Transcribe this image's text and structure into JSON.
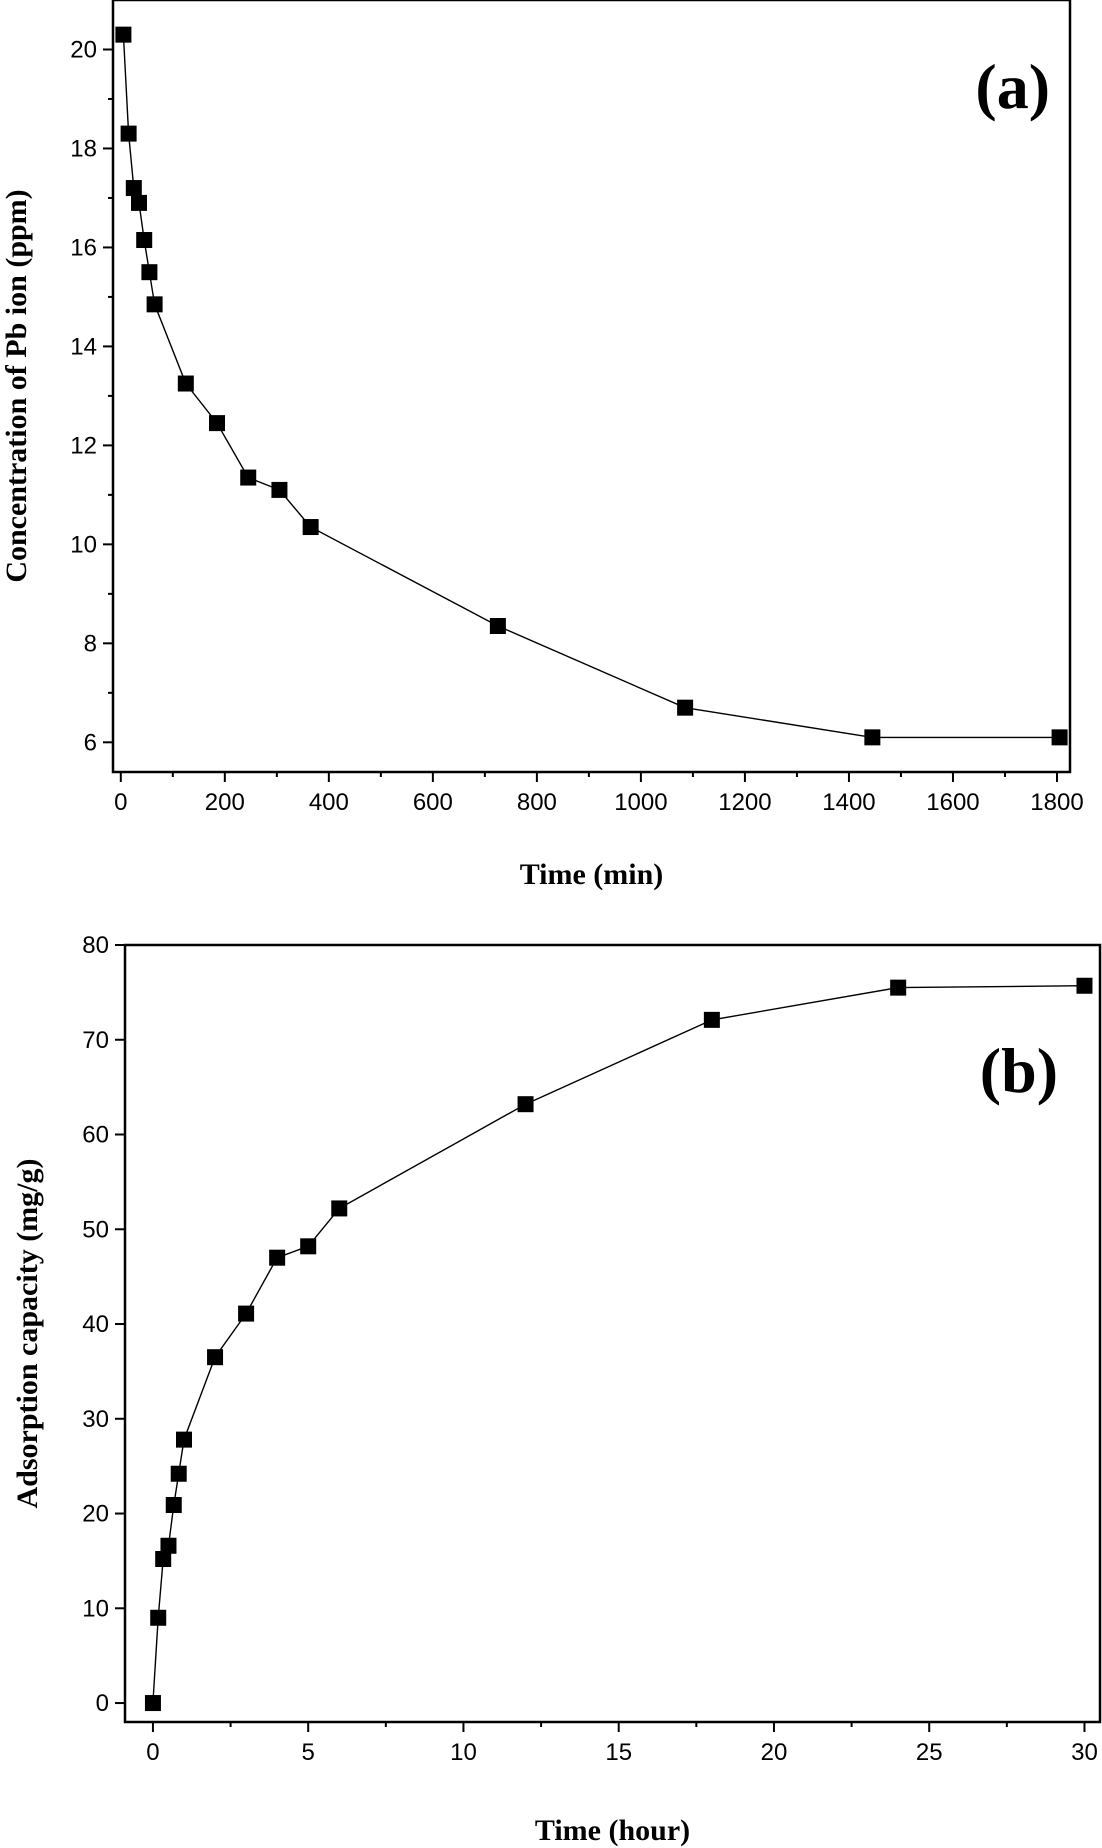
{
  "chart_data": [
    {
      "type": "line",
      "panel_label": "(a)",
      "xlabel": "Time (min)",
      "ylabel": "Concentration of Pb ion (ppm)",
      "xlim": [
        -15,
        1825
      ],
      "ylim": [
        5.4,
        21.0
      ],
      "xticks": [
        0,
        200,
        400,
        600,
        800,
        1000,
        1200,
        1400,
        1600,
        1800
      ],
      "yticks": [
        6,
        8,
        10,
        12,
        14,
        16,
        18,
        20
      ],
      "x": [
        5,
        15,
        25,
        35,
        45,
        55,
        65,
        125,
        185,
        245,
        305,
        365,
        725,
        1085,
        1445,
        1805
      ],
      "y": [
        20.3,
        18.3,
        17.2,
        16.9,
        16.15,
        15.5,
        14.85,
        13.25,
        12.45,
        11.35,
        11.1,
        10.35,
        8.35,
        6.7,
        6.1,
        6.1
      ],
      "marker": "square",
      "legend": "none"
    },
    {
      "type": "line",
      "panel_label": "(b)",
      "xlabel": "Time (hour)",
      "ylabel": "Adsorption capacity (mg/g)",
      "xlim": [
        -0.9,
        30.5
      ],
      "ylim": [
        -2,
        80
      ],
      "xticks": [
        0,
        5,
        10,
        15,
        20,
        25,
        30
      ],
      "yticks": [
        0,
        10,
        20,
        30,
        40,
        50,
        60,
        70,
        80
      ],
      "x": [
        0,
        0.17,
        0.33,
        0.5,
        0.67,
        0.83,
        1,
        2,
        3,
        4,
        5,
        6,
        12,
        18,
        24,
        30
      ],
      "y": [
        0,
        9,
        15.2,
        16.6,
        20.9,
        24.2,
        27.8,
        36.5,
        41.1,
        47,
        48.2,
        52.2,
        63.2,
        72.1,
        75.5,
        75.7
      ],
      "marker": "square",
      "legend": "none"
    }
  ]
}
